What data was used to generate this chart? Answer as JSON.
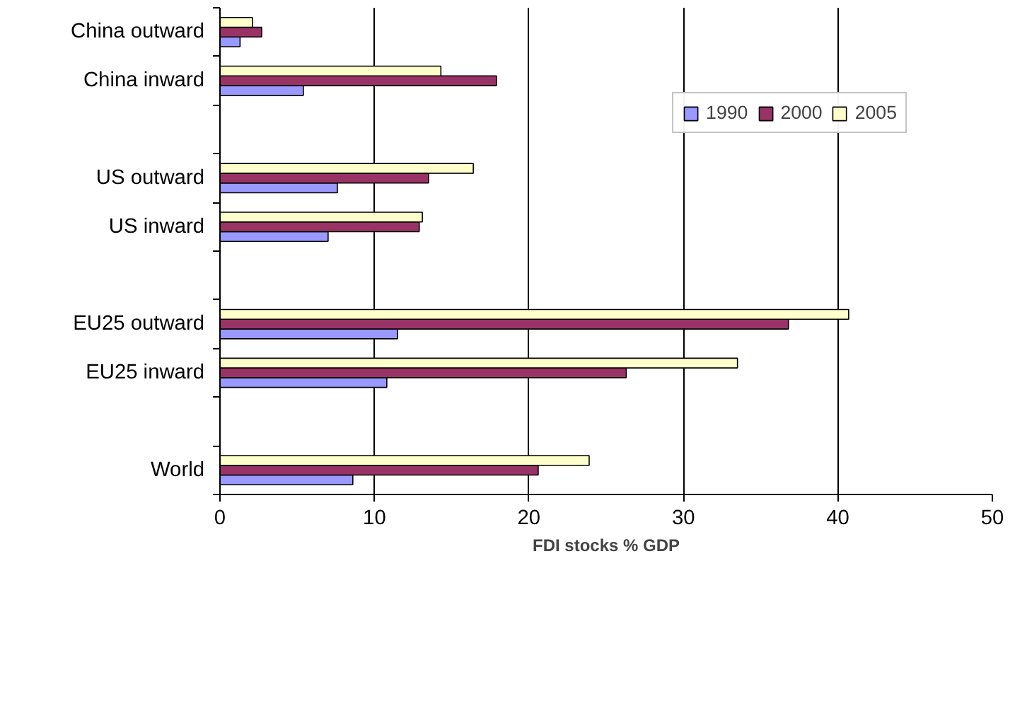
{
  "chart_data": {
    "type": "bar",
    "orientation": "horizontal",
    "xlabel": "FDI stocks % GDP",
    "categories": [
      "China outward",
      "China inward",
      null,
      "US outward",
      "US inward",
      null,
      "EU25 outward",
      "EU25 inward",
      null,
      "World"
    ],
    "series": [
      {
        "name": "1990",
        "color": "#9999ff",
        "values": [
          1.3,
          5.4,
          null,
          7.6,
          7.0,
          null,
          11.5,
          10.8,
          null,
          8.6
        ]
      },
      {
        "name": "2000",
        "color": "#993366",
        "values": [
          2.7,
          17.9,
          null,
          13.5,
          12.9,
          null,
          36.8,
          26.3,
          null,
          20.6
        ]
      },
      {
        "name": "2005",
        "color": "#ffffcc",
        "values": [
          2.1,
          14.3,
          null,
          16.4,
          13.1,
          null,
          40.7,
          33.5,
          null,
          23.9
        ]
      }
    ],
    "xlim": [
      0,
      50
    ],
    "xticks": [
      0,
      10,
      20,
      30,
      40,
      50
    ],
    "grid": "x",
    "legend": "top right"
  }
}
